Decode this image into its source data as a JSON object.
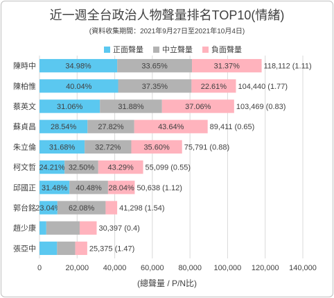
{
  "title": "近一週全台政治人物聲量排名TOP10(情緒)",
  "subtitle": "(資料收集期間：2021年9月27日至2021年10月4日)",
  "colors": {
    "positive": "#5bc8f0",
    "neutral": "#b3b3b3",
    "negative": "#ffb3bd",
    "text": "#404040",
    "grid": "#d9d9d9"
  },
  "chart_data": {
    "type": "bar",
    "orientation": "horizontal",
    "stacked": true,
    "title": "近一週全台政治人物聲量排名TOP10(情緒)",
    "xlabel": "(總聲量 / P/N比)",
    "xlim": [
      0,
      140000
    ],
    "xticks": [
      "0",
      "20,000",
      "40,000",
      "60,000",
      "80,000",
      "100,000",
      "120,000",
      "140,000"
    ],
    "grid": true,
    "legend_position": "top",
    "categories": [
      "陳時中",
      "陳柏惟",
      "蔡英文",
      "蘇貞昌",
      "朱立倫",
      "柯文哲",
      "邱國正",
      "郭台銘",
      "趙少康",
      "張亞中"
    ],
    "totals": [
      118112,
      104440,
      103469,
      89411,
      75791,
      55099,
      50638,
      41298,
      30397,
      25375
    ],
    "end_labels": [
      "118,112 (1.11)",
      "104,440 (1.77)",
      "103,469 (0.83)",
      "89,411 (0.65)",
      "75,791 (0.88)",
      "55,099 (0.55)",
      "50,638 (1.12)",
      "41,298 (1.54)",
      "30,397 (0.4)",
      "25,375 (1.47)"
    ],
    "series": [
      {
        "name": "正面聲量",
        "percent": [
          34.98,
          40.04,
          31.06,
          28.54,
          31.68,
          24.21,
          31.48,
          23.04,
          11.9,
          36.75
        ],
        "labels": [
          "34.98%",
          "40.04%",
          "31.06%",
          "28.54%",
          "31.68%",
          "24.21%",
          "31.48%",
          "23.04%",
          "",
          ""
        ]
      },
      {
        "name": "中立聲量",
        "percent": [
          33.65,
          37.35,
          31.88,
          27.82,
          32.72,
          32.5,
          40.48,
          62.08,
          58.35,
          38.23
        ],
        "labels": [
          "33.65%",
          "37.35%",
          "31.88%",
          "27.82%",
          "32.72%",
          "32.50%",
          "40.48%",
          "62.08%",
          "",
          ""
        ]
      },
      {
        "name": "負面聲量",
        "percent": [
          31.37,
          22.61,
          37.06,
          43.64,
          35.6,
          43.29,
          28.04,
          14.88,
          29.75,
          25.02
        ],
        "labels": [
          "31.37%",
          "22.61%",
          "37.06%",
          "43.64%",
          "35.60%",
          "43.29%",
          "28.04%",
          "",
          "",
          ""
        ]
      }
    ]
  }
}
